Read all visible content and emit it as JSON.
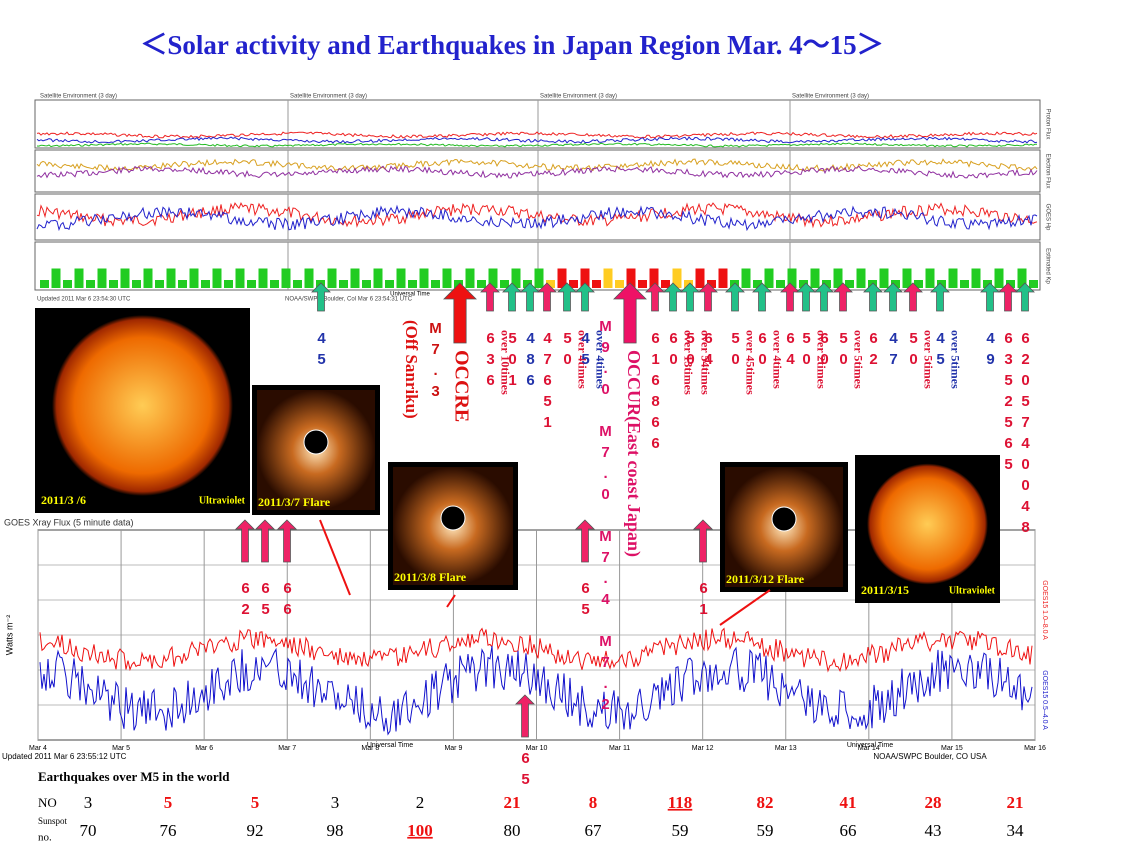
{
  "title": "＜Solar activity and Earthquakes  in Japan Region Mar. 4～15＞",
  "top_panel": {
    "headers": [
      "Satellite Environment (3 day)",
      "Satellite Environment (3 day)",
      "Satellite Environment (3 day)",
      "Satellite Environment (3 day)"
    ],
    "side_labels": [
      "Proton Flux",
      "Electron Flux",
      "GOES Hp",
      "Estimated Kp"
    ],
    "axis_label": "Universal Time",
    "footer_left": "Updated 2011 Mar  6 23:54:30 UTC",
    "footer_mid": "NOAA/SWPC Boulder, Col Mar  6 23:54:31 UTC"
  },
  "xray_chart": {
    "title": "GOES Xray Flux (5 minute data)",
    "y_label": "Watts m⁻²",
    "x_label": "Universal Time",
    "dates": [
      "Mar 4",
      "Mar 5",
      "Mar 6",
      "Mar 7",
      "Mar 8",
      "Mar 9",
      "Mar 10",
      "Mar 11",
      "Mar 12",
      "Mar 13",
      "Mar 14",
      "Mar 15",
      "Mar 16"
    ],
    "legend": [
      "GOES15 1.0–8.0 A",
      "GOES15 0.5–4.0 A"
    ],
    "footer_left": "Updated 2011 Mar  6 23:55:12 UTC",
    "footer_right": "NOAA/SWPC Boulder, CO USA"
  },
  "images": [
    {
      "caption": "2011/3 /6",
      "sub": "Ultraviolet"
    },
    {
      "caption": "2011/3/7  Flare"
    },
    {
      "caption": "2011/3/8  Flare"
    },
    {
      "caption": "2011/3/12   Flare"
    },
    {
      "caption": "2011/3/15",
      "sub": "Ultraviolet"
    }
  ],
  "annotations": {
    "m73": "M7.3",
    "occre": "OCCRE",
    "off": "(Off Sanriku)",
    "m9": "M9.0 M7.0 M7.4 M7.2",
    "occur": "OCCUR(East  coast Japan)"
  },
  "arrow_labels": [
    {
      "digits": "45",
      "color": "#2233aa"
    },
    {
      "digits": "636",
      "note": "over 10times",
      "color": "#dd1133"
    },
    {
      "digits": "501",
      "color": "#dd1133"
    },
    {
      "digits": "486",
      "color": "#2233aa"
    },
    {
      "digits": "47651",
      "color": "#dd1133"
    },
    {
      "digits": "50",
      "note": "over 4times",
      "color": "#dd1133"
    },
    {
      "digits": "45",
      "note": "over 4times",
      "color": "#2233aa"
    },
    {
      "digits": "616866",
      "color": "#dd1133"
    },
    {
      "digits": "60",
      "note": "over 13times",
      "color": "#dd1133"
    },
    {
      "digits": "50",
      "note": "over 54times",
      "color": "#dd1133"
    },
    {
      "digits": "64",
      "color": "#dd1133"
    },
    {
      "digits": "50",
      "note": "over 45times",
      "color": "#dd1133"
    },
    {
      "digits": "60",
      "note": "over 4times",
      "color": "#dd1133"
    },
    {
      "digits": "64",
      "color": "#dd1133"
    },
    {
      "digits": "50",
      "note": "over 2times",
      "color": "#dd1133"
    },
    {
      "digits": "60",
      "color": "#dd1133"
    },
    {
      "digits": "50",
      "note": "over 5times",
      "color": "#dd1133"
    },
    {
      "digits": "62",
      "color": "#dd1133"
    },
    {
      "digits": "47",
      "color": "#2233aa"
    },
    {
      "digits": "50",
      "note": "over 5times",
      "color": "#dd1133"
    },
    {
      "digits": "45",
      "note": "over 5times",
      "color": "#2233aa"
    },
    {
      "digits": "49",
      "color": "#2233aa"
    },
    {
      "digits": "6352565",
      "color": "#dd1133"
    },
    {
      "digits": "6205740048",
      "color": "#dd1133"
    }
  ],
  "lower_arrow_labels": [
    {
      "digits": "62"
    },
    {
      "digits": "65"
    },
    {
      "digits": "66"
    },
    {
      "digits": "65"
    },
    {
      "digits": "61"
    },
    {
      "digits": "65"
    }
  ],
  "table": {
    "heading": "Earthquakes  over M5 in the world",
    "rows": [
      {
        "label": "NO",
        "values": [
          3,
          5,
          5,
          3,
          2,
          21,
          8,
          118,
          82,
          41,
          28,
          21
        ],
        "red": [
          false,
          true,
          true,
          false,
          false,
          true,
          true,
          true,
          true,
          true,
          true,
          true
        ],
        "underline": [
          false,
          false,
          false,
          false,
          false,
          false,
          false,
          true,
          false,
          false,
          false,
          false
        ]
      },
      {
        "label": "Sunspot",
        "label2": "no.",
        "values": [
          70,
          76,
          92,
          98,
          100,
          80,
          67,
          59,
          59,
          66,
          43,
          34
        ],
        "red": [
          false,
          false,
          false,
          false,
          true,
          false,
          false,
          false,
          false,
          false,
          false,
          false
        ],
        "underline": [
          false,
          false,
          false,
          false,
          true,
          false,
          false,
          false,
          false,
          false,
          false,
          false
        ]
      }
    ]
  }
}
